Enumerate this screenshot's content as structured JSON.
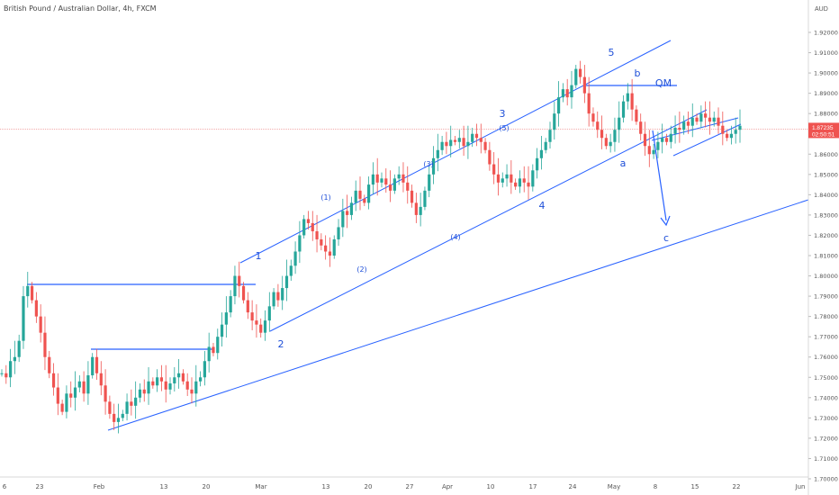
{
  "header": {
    "title": "British Pound / Australian Dollar, 4h, FXCM"
  },
  "chart_data": {
    "type": "candlestick",
    "symbol": "British Pound / Australian Dollar",
    "interval": "4h",
    "source": "FXCM",
    "currency": "AUD",
    "ylim": [
      1.7,
      1.925
    ],
    "y_ticks": [
      "1.92000",
      "1.91000",
      "1.90000",
      "1.89000",
      "1.88000",
      "1.87000",
      "1.86000",
      "1.85000",
      "1.84000",
      "1.83000",
      "1.82000",
      "1.81000",
      "1.80000",
      "1.79000",
      "1.78000",
      "1.77000",
      "1.76000",
      "1.75000",
      "1.74000",
      "1.73000",
      "1.72000",
      "1.71000",
      "1.70000"
    ],
    "x_ticks": [
      "6",
      "23",
      "Feb",
      "13",
      "20",
      "Mar",
      "13",
      "20",
      "27",
      "Apr",
      "10",
      "17",
      "24",
      "May",
      "8",
      "15",
      "22",
      "Jun"
    ],
    "last_price": "1.87235",
    "countdown": "02:50:51",
    "price_path": [
      [
        1.752,
        1.75,
        1.758,
        1.76,
        1.768,
        1.79,
        1.795,
        1.788,
        1.78,
        1.772,
        1.76,
        1.752,
        1.745,
        1.737,
        1.733,
        1.742,
        1.74,
        1.745,
        1.748,
        1.742,
        1.751,
        1.76,
        1.752,
        1.746,
        1.738,
        1.732,
        1.728,
        1.73,
        1.732,
        1.738,
        1.736,
        1.74,
        1.744,
        1.742,
        1.748,
        1.746,
        1.75,
        1.748,
        1.744,
        1.747,
        1.75,
        1.752,
        1.748,
        1.744,
        1.742,
        1.748
      ],
      [
        1.75,
        1.758,
        1.765,
        1.762,
        1.77,
        1.776,
        1.782,
        1.79,
        1.8,
        1.795,
        1.788,
        1.782,
        1.778,
        1.776,
        1.772,
        1.778,
        1.785,
        1.792,
        1.788,
        1.794,
        1.8,
        1.805,
        1.812,
        1.82,
        1.828,
        1.826,
        1.822,
        1.818,
        1.815,
        1.812,
        1.81,
        1.818,
        1.824,
        1.832,
        1.83,
        1.836,
        1.842,
        1.838,
        1.836,
        1.845,
        1.85,
        1.846,
        1.848,
        1.845,
        1.842,
        1.848,
        1.85,
        1.846,
        1.842,
        1.836,
        1.83
      ],
      [
        1.834,
        1.842,
        1.85,
        1.858,
        1.862,
        1.866,
        1.864,
        1.867,
        1.866,
        1.868,
        1.864,
        1.866,
        1.87,
        1.868,
        1.866,
        1.862,
        1.855,
        1.85,
        1.846,
        1.848,
        1.85,
        1.846,
        1.844,
        1.848,
        1.846,
        1.844,
        1.852,
        1.858,
        1.862,
        1.866,
        1.872,
        1.88,
        1.888,
        1.892,
        1.888,
        1.894,
        1.902,
        1.898,
        1.89,
        1.88,
        1.876,
        1.872,
        1.868,
        1.864,
        1.866,
        1.872,
        1.878,
        1.886,
        1.89,
        1.882,
        1.876,
        1.87
      ],
      [
        1.864,
        1.86,
        1.862,
        1.866,
        1.868,
        1.866,
        1.87,
        1.873,
        1.872,
        1.876,
        1.874,
        1.878,
        1.876,
        1.88,
        1.878,
        1.876,
        1.878,
        1.874,
        1.87,
        1.868,
        1.87,
        1.872,
        1.874
      ]
    ],
    "wave_labels": [
      "1",
      "2",
      "3",
      "4",
      "5",
      "(1)",
      "(2)",
      "(3)",
      "(4)",
      "(5)",
      "a",
      "b",
      "c",
      "QM"
    ]
  }
}
